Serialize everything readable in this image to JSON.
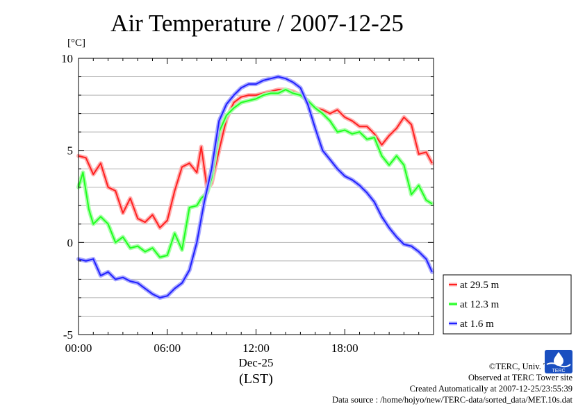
{
  "chart_data": {
    "type": "line",
    "title": "Air Temperature / 2007-12-25",
    "unit_label": "[°C]",
    "xlabel_date": "Dec-25",
    "xlabel": "(LST)",
    "x_ticks": [
      "00:00",
      "06:00",
      "12:00",
      "18:00"
    ],
    "y_ticks": [
      "10",
      "5",
      "0",
      "-5"
    ],
    "xlim": [
      0,
      24
    ],
    "ylim": [
      -5,
      10
    ],
    "grid": true,
    "legend_position": "right",
    "series": [
      {
        "name": "at 29.5 m",
        "color": "#ff2020",
        "x": [
          0,
          0.5,
          1,
          1.5,
          2,
          2.5,
          3,
          3.5,
          4,
          4.5,
          5,
          5.5,
          6,
          6.5,
          7,
          7.5,
          8,
          8.3,
          8.7,
          9,
          9.5,
          10,
          10.5,
          11,
          11.5,
          12,
          12.5,
          13,
          13.5,
          14,
          14.5,
          15,
          15.5,
          16,
          16.5,
          17,
          17.5,
          18,
          18.5,
          19,
          19.5,
          20,
          20.5,
          21,
          21.5,
          22,
          22.5,
          23,
          23.5,
          23.9
        ],
        "y": [
          4.7,
          4.6,
          3.7,
          4.3,
          3.0,
          2.8,
          1.6,
          2.4,
          1.3,
          1.1,
          1.5,
          0.8,
          1.2,
          2.8,
          4.1,
          4.3,
          3.8,
          5.2,
          2.9,
          3.2,
          5.0,
          6.7,
          7.6,
          7.9,
          8.0,
          8.0,
          8.1,
          8.2,
          8.3,
          8.3,
          8.2,
          8.0,
          7.7,
          7.3,
          7.2,
          7.0,
          7.2,
          6.8,
          6.6,
          6.3,
          6.3,
          5.9,
          5.3,
          5.8,
          6.2,
          6.8,
          6.4,
          4.8,
          4.9,
          4.3
        ]
      },
      {
        "name": "at 12.3 m",
        "color": "#20ff20",
        "x": [
          0,
          0.3,
          0.7,
          1,
          1.5,
          2,
          2.5,
          3,
          3.5,
          4,
          4.5,
          5,
          5.5,
          6,
          6.5,
          7,
          7.5,
          8,
          8.3,
          8.7,
          9,
          9.5,
          10,
          10.5,
          11,
          11.5,
          12,
          12.5,
          13,
          13.5,
          14,
          14.5,
          15,
          15.5,
          16,
          16.5,
          17,
          17.5,
          18,
          18.5,
          19,
          19.5,
          20,
          20.5,
          21,
          21.5,
          22,
          22.5,
          23,
          23.5,
          23.9
        ],
        "y": [
          3.0,
          3.8,
          1.8,
          1.0,
          1.4,
          1.0,
          0.0,
          0.3,
          -0.3,
          -0.2,
          -0.5,
          -0.3,
          -0.8,
          -0.7,
          0.5,
          -0.4,
          1.9,
          2.0,
          2.4,
          2.7,
          3.5,
          6.0,
          6.9,
          7.3,
          7.6,
          7.7,
          7.8,
          8.0,
          8.1,
          8.1,
          8.3,
          8.1,
          8.0,
          7.7,
          7.3,
          7.0,
          6.6,
          6.0,
          6.1,
          5.9,
          6.0,
          5.6,
          5.7,
          4.7,
          4.2,
          4.7,
          4.2,
          2.6,
          3.1,
          2.3,
          2.1
        ]
      },
      {
        "name": "at 1.6 m",
        "color": "#2020ff",
        "x": [
          0,
          0.5,
          1,
          1.5,
          2,
          2.5,
          3,
          3.5,
          4,
          4.5,
          5,
          5.5,
          6,
          6.5,
          7,
          7.5,
          8,
          8.5,
          9,
          9.5,
          10,
          10.5,
          11,
          11.5,
          12,
          12.5,
          13,
          13.5,
          14,
          14.5,
          15,
          15.5,
          16,
          16.5,
          17,
          17.5,
          18,
          18.5,
          19,
          19.5,
          20,
          20.5,
          21,
          21.5,
          22,
          22.5,
          23,
          23.5,
          23.9
        ],
        "y": [
          -0.9,
          -1.0,
          -0.9,
          -1.8,
          -1.6,
          -2.0,
          -1.9,
          -2.1,
          -2.2,
          -2.5,
          -2.8,
          -3.0,
          -2.9,
          -2.5,
          -2.2,
          -1.5,
          0.0,
          2.2,
          4.0,
          6.6,
          7.5,
          8.0,
          8.4,
          8.6,
          8.6,
          8.8,
          8.9,
          9.0,
          8.9,
          8.7,
          8.4,
          7.5,
          6.2,
          5.0,
          4.5,
          4.0,
          3.6,
          3.4,
          3.1,
          2.7,
          2.2,
          1.4,
          0.8,
          0.3,
          -0.1,
          -0.2,
          -0.5,
          -0.9,
          -1.6
        ]
      }
    ]
  },
  "credits": {
    "copyright": "©TERC, Univ. Tsukuba",
    "site": "Observed at TERC Tower site",
    "created": "Created Automatically at 2007-12-25/23:55:39",
    "source": "Data source : /home/hojyo/new/TERC-data/sorted_data/MET.10s.dat"
  },
  "logo_text": "TERC"
}
